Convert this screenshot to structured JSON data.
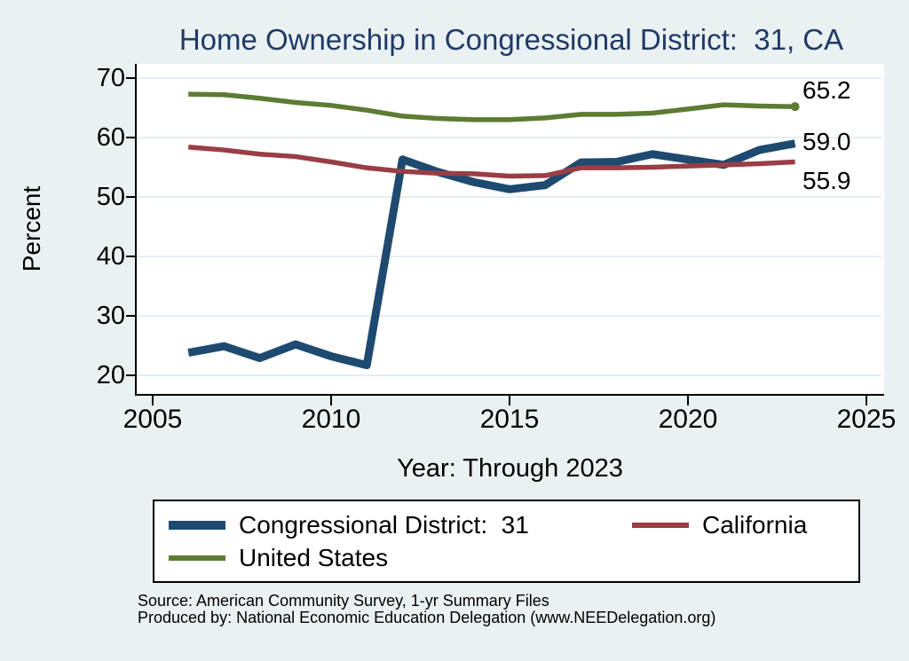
{
  "colors": {
    "background": "#eaf1f3",
    "plot_background": "#ffffff",
    "gridline": "#dde9ee",
    "axis": "#000000",
    "title": "#1f3a66",
    "district31_line": "#1e4a70",
    "california_line": "#9a3d44",
    "us_line": "#5c7c33"
  },
  "chart_data": {
    "type": "line",
    "title": "Home Ownership in Congressional District:  31, CA",
    "xlabel": "Year: Through 2023",
    "ylabel": "Percent",
    "xlim": [
      2005,
      2025
    ],
    "ylim": [
      20,
      70
    ],
    "xticks": [
      2005,
      2010,
      2015,
      2020,
      2025
    ],
    "yticks": [
      20,
      30,
      40,
      50,
      60,
      70
    ],
    "grid": true,
    "legend_position": "bottom",
    "x": [
      2006,
      2007,
      2008,
      2009,
      2010,
      2011,
      2012,
      2013,
      2014,
      2015,
      2016,
      2017,
      2018,
      2019,
      2020,
      2021,
      2022,
      2023
    ],
    "series": [
      {
        "name": "Congressional District:  31",
        "color": "#1e4a70",
        "thickness": 9,
        "values": [
          23.8,
          24.9,
          22.9,
          25.2,
          23.2,
          21.7,
          56.3,
          54.2,
          52.5,
          51.3,
          52.0,
          55.8,
          55.9,
          57.2,
          56.3,
          55.4,
          57.9,
          59.0
        ]
      },
      {
        "name": "California",
        "color": "#9a3d44",
        "thickness": 5.5,
        "values": [
          58.4,
          57.9,
          57.2,
          56.8,
          55.9,
          54.9,
          54.3,
          54.0,
          53.9,
          53.5,
          53.6,
          54.9,
          54.9,
          55.0,
          55.2,
          55.4,
          55.6,
          55.9
        ]
      },
      {
        "name": "United States",
        "color": "#5c7c33",
        "thickness": 5.5,
        "end_dot": true,
        "values": [
          67.3,
          67.2,
          66.6,
          65.9,
          65.4,
          64.6,
          63.6,
          63.2,
          63.0,
          63.0,
          63.3,
          63.9,
          63.9,
          64.1,
          64.8,
          65.5,
          65.3,
          65.2
        ]
      }
    ],
    "end_labels": [
      {
        "text": "65.2",
        "series_index": 2
      },
      {
        "text": "59.0",
        "series_index": 0
      },
      {
        "text": "55.9",
        "series_index": 1
      }
    ]
  },
  "source": {
    "line1": "Source: American Community Survey, 1-yr Summary Files",
    "line2": "Produced by: National Economic Education Delegation (www.NEEDelegation.org)"
  }
}
